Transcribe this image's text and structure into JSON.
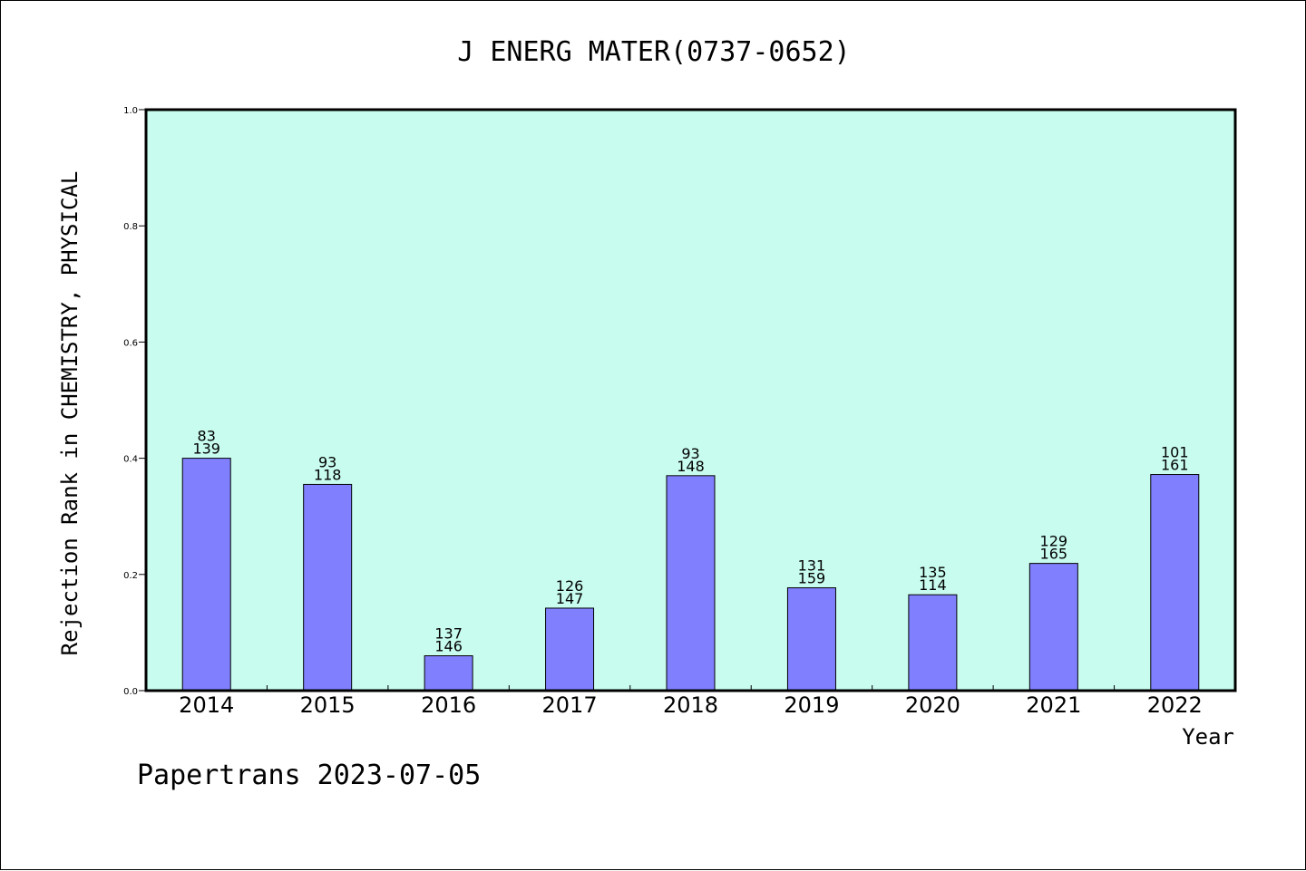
{
  "footer": "Papertrans 2023-07-05",
  "colors": {
    "plot_background": "#c8fcee",
    "bar_fill": "#8080ff",
    "bar_stroke": "#000000"
  },
  "chart_data": {
    "type": "bar",
    "title": "J ENERG MATER(0737-0652)",
    "xlabel": "Year",
    "ylabel": "Rejection Rank in CHEMISTRY, PHYSICAL",
    "ylim": [
      0,
      1.0
    ],
    "yticks": [
      "0.0",
      "0.2",
      "0.4",
      "0.6",
      "0.8",
      "1.0"
    ],
    "grid": false,
    "categories": [
      "2014",
      "2015",
      "2016",
      "2017",
      "2018",
      "2019",
      "2020",
      "2021",
      "2022"
    ],
    "values": [
      0.4,
      0.355,
      0.06,
      0.142,
      0.37,
      0.177,
      0.165,
      0.219,
      0.372
    ],
    "labels_top": [
      "83",
      "93",
      "137",
      "126",
      "93",
      "131",
      "135",
      "129",
      "101"
    ],
    "labels_bottom": [
      "139",
      "118",
      "146",
      "147",
      "148",
      "159",
      "114",
      "165",
      "161"
    ]
  }
}
